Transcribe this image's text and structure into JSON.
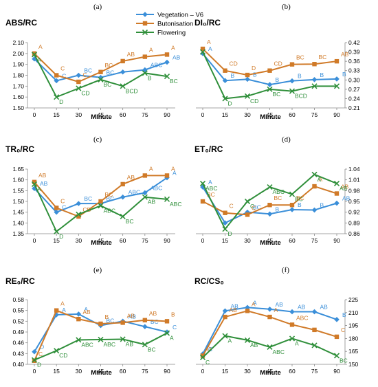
{
  "colors": {
    "vegetation": "#3b8fd9",
    "butonisation": "#d07a28",
    "flowering": "#2f8f3a"
  },
  "legend": [
    "Vegetation – V6",
    "Butonisation",
    "Flowering"
  ],
  "chart_data": [
    {
      "panel": "(a)",
      "title": "ABS/RC",
      "type": "line",
      "xlabel": "Minute",
      "x": [
        0,
        15,
        30,
        45,
        60,
        75,
        90
      ],
      "ylim": [
        1.5,
        2.1
      ],
      "yticks": [
        "1.50",
        "1.60",
        "1.70",
        "1.80",
        "1.90",
        "2.00",
        "2.10"
      ],
      "ytickvals": [
        1.5,
        1.6,
        1.7,
        1.8,
        1.9,
        2.0,
        2.1
      ],
      "yaxis": "left",
      "series": [
        {
          "name": "Vegetation – V6",
          "values": [
            1.95,
            1.75,
            1.8,
            1.78,
            1.83,
            1.85,
            1.92
          ],
          "labels": [
            "",
            "C",
            "BC",
            "BC",
            "",
            "ABC",
            "AB"
          ]
        },
        {
          "name": "Butonisation",
          "values": [
            2.0,
            1.8,
            1.74,
            1.83,
            1.93,
            1.97,
            1.99
          ],
          "labels": [
            "A",
            "C",
            "C",
            "BC",
            "AB",
            "A",
            "A"
          ]
        },
        {
          "name": "Flowering",
          "values": [
            1.99,
            1.6,
            1.68,
            1.76,
            1.7,
            1.82,
            1.79
          ],
          "labels": [
            "A",
            "D",
            "CD",
            "BC",
            "BCD",
            "B",
            "BC"
          ]
        }
      ]
    },
    {
      "panel": "(b)",
      "title": "DI₀/RC",
      "type": "line",
      "xlabel": "Minute",
      "x": [
        0,
        15,
        30,
        45,
        60,
        75,
        90
      ],
      "ylim": [
        0.21,
        0.42
      ],
      "yticks": [
        "0.21",
        "0.24",
        "0.27",
        "0.30",
        "0.33",
        "0.36",
        "0.39",
        "0.42"
      ],
      "ytickvals": [
        0.21,
        0.24,
        0.27,
        0.3,
        0.33,
        0.36,
        0.39,
        0.42
      ],
      "yaxis": "right",
      "series": [
        {
          "name": "Vegetation – V6",
          "values": [
            0.385,
            0.298,
            0.302,
            0.285,
            0.297,
            0.301,
            0.303
          ],
          "labels": [
            "A",
            "B",
            "B",
            "B",
            "B",
            "B",
            "B"
          ]
        },
        {
          "name": "Butonisation",
          "values": [
            0.4,
            0.33,
            0.316,
            0.33,
            0.35,
            0.351,
            0.36
          ],
          "labels": [
            "A",
            "CD",
            "D",
            "CD",
            "BC",
            "BC",
            "AB"
          ]
        },
        {
          "name": "Flowering",
          "values": [
            0.39,
            0.24,
            0.248,
            0.27,
            0.264,
            0.28,
            0.28
          ],
          "labels": [
            "",
            "D",
            "CD",
            "BC",
            "BCD",
            "",
            ""
          ]
        }
      ]
    },
    {
      "panel": "(c)",
      "title": "TR₀/RC",
      "type": "line",
      "xlabel": "Minute",
      "x": [
        0,
        15,
        30,
        45,
        60,
        75,
        90
      ],
      "ylim": [
        1.35,
        1.65
      ],
      "yticks": [
        "1.35",
        "1.40",
        "1.45",
        "1.50",
        "1.55",
        "1.60",
        "1.65"
      ],
      "ytickvals": [
        1.35,
        1.4,
        1.45,
        1.5,
        1.55,
        1.6,
        1.65
      ],
      "yaxis": "left",
      "series": [
        {
          "name": "Vegetation – V6",
          "values": [
            1.56,
            1.45,
            1.49,
            1.49,
            1.52,
            1.54,
            1.61
          ],
          "labels": [
            "AB",
            "C",
            "BC",
            "BC",
            "ABC",
            "ABC",
            "A"
          ]
        },
        {
          "name": "Butonisation",
          "values": [
            1.59,
            1.47,
            1.43,
            1.5,
            1.58,
            1.62,
            1.62
          ],
          "labels": [
            "AB",
            "C",
            "CD",
            "BC",
            "AB",
            "A",
            "A"
          ]
        },
        {
          "name": "Flowering",
          "values": [
            1.58,
            1.36,
            1.44,
            1.48,
            1.43,
            1.52,
            1.51
          ],
          "labels": [
            "A",
            "D",
            "",
            "ABC",
            "BC",
            "AB",
            "ABC"
          ]
        }
      ]
    },
    {
      "panel": "(d)",
      "title": "ET₀/RC",
      "type": "line",
      "xlabel": "Minute",
      "x": [
        0,
        15,
        30,
        45,
        60,
        75,
        90
      ],
      "ylim": [
        0.86,
        1.04
      ],
      "yticks": [
        "0.86",
        "0.89",
        "0.92",
        "0.95",
        "0.98",
        "1.01",
        "1.04"
      ],
      "ytickvals": [
        0.86,
        0.89,
        0.92,
        0.95,
        0.98,
        1.01,
        1.04
      ],
      "yaxis": "right",
      "series": [
        {
          "name": "Vegetation – V6",
          "values": [
            0.99,
            0.89,
            0.92,
            0.915,
            0.927,
            0.926,
            0.945
          ],
          "labels": [
            "A",
            "",
            "BC",
            "B",
            "B",
            "B",
            "AB"
          ]
        },
        {
          "name": "Butonisation",
          "values": [
            0.95,
            0.918,
            0.913,
            0.94,
            0.94,
            0.992,
            0.972
          ],
          "labels": [
            "BC",
            "C",
            "C",
            "BC",
            "BC",
            "A",
            "AB"
          ]
        },
        {
          "name": "Flowering",
          "values": [
            1.0,
            0.873,
            0.95,
            0.99,
            0.97,
            1.025,
            1.0
          ],
          "labels": [
            "ABC",
            "D",
            "C",
            "ABC",
            "BC",
            "A",
            "AB"
          ]
        }
      ]
    },
    {
      "panel": "(e)",
      "title": "RE₀/RC",
      "type": "line",
      "xlabel": "Minute",
      "x": [
        0,
        15,
        30,
        45,
        60,
        75,
        90
      ],
      "ylim": [
        0.4,
        0.58
      ],
      "yticks": [
        "0.40",
        "0.43",
        "0.46",
        "0.49",
        "0.52",
        "0.55",
        "0.58"
      ],
      "ytickvals": [
        0.4,
        0.43,
        0.46,
        0.49,
        0.52,
        0.55,
        0.58
      ],
      "yaxis": "left",
      "series": [
        {
          "name": "Vegetation – V6",
          "values": [
            0.435,
            0.538,
            0.54,
            0.508,
            0.52,
            0.505,
            0.49
          ],
          "labels": [
            "D",
            "A",
            "A",
            "BC",
            "AB",
            "BC",
            "C"
          ]
        },
        {
          "name": "Butonisation",
          "values": [
            0.41,
            0.55,
            0.526,
            0.513,
            0.516,
            0.523,
            0.52
          ],
          "labels": [
            "C",
            "A",
            "AB",
            "B",
            "AB",
            "AB",
            "B"
          ]
        },
        {
          "name": "Flowering",
          "values": [
            0.412,
            0.438,
            0.468,
            0.469,
            0.47,
            0.455,
            0.487
          ],
          "labels": [
            "D",
            "CD",
            "ABC",
            "ABC",
            "AB",
            "BC",
            "A"
          ]
        }
      ]
    },
    {
      "panel": "(f)",
      "title": "RC/CS₀",
      "type": "line",
      "xlabel": "Minute",
      "x": [
        0,
        15,
        30,
        45,
        60,
        75,
        90
      ],
      "ylim": [
        150,
        225
      ],
      "yticks": [
        "150",
        "165",
        "180",
        "195",
        "210",
        "225"
      ],
      "ytickvals": [
        150,
        165,
        180,
        195,
        210,
        225
      ],
      "yaxis": "right",
      "series": [
        {
          "name": "Vegetation – V6",
          "values": [
            162,
            212,
            216,
            214,
            211,
            211,
            202
          ],
          "labels": [
            "C",
            "AB",
            "A",
            "AB",
            "AB",
            "AB",
            "B"
          ]
        },
        {
          "name": "Butonisation",
          "values": [
            160,
            205,
            212,
            205,
            196,
            190,
            182
          ],
          "labels": [
            "D",
            "AB",
            "A",
            "A",
            "ABC",
            "",
            "C"
          ]
        },
        {
          "name": "Flowering",
          "values": [
            158,
            183,
            178,
            170,
            180,
            172,
            160
          ],
          "labels": [
            "C",
            "A",
            "AB",
            "ABC",
            "A",
            "",
            "BC"
          ]
        }
      ]
    }
  ]
}
